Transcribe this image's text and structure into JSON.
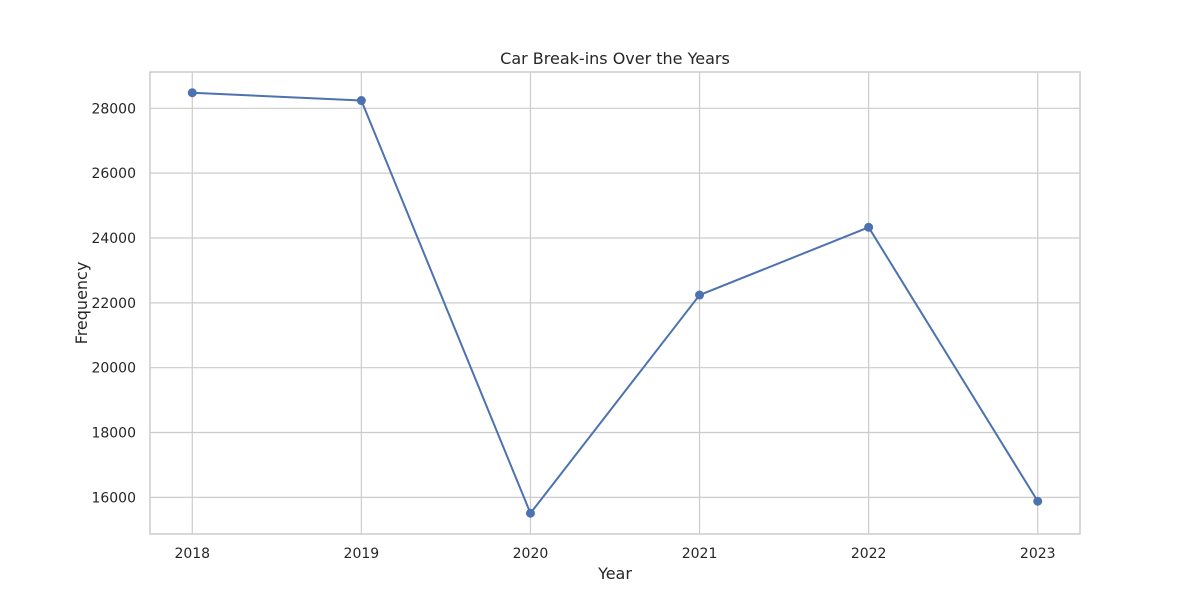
{
  "chart_data": {
    "type": "line",
    "title": "Car Break-ins Over the Years",
    "xlabel": "Year",
    "ylabel": "Frequency",
    "x": [
      2018,
      2019,
      2020,
      2021,
      2022,
      2023
    ],
    "x_tick_labels": [
      "2018",
      "2019",
      "2020",
      "2021",
      "2022",
      "2023"
    ],
    "series": [
      {
        "values": [
          28480,
          28240,
          15510,
          22240,
          24330,
          15880
        ]
      }
    ],
    "xlim": [
      2017.75,
      2023.25
    ],
    "ylim": [
      14870,
      29120
    ],
    "y_ticks": [
      16000,
      18000,
      20000,
      22000,
      24000,
      26000,
      28000
    ],
    "y_tick_labels": [
      "16000",
      "18000",
      "20000",
      "22000",
      "24000",
      "26000",
      "28000"
    ],
    "grid": true,
    "line_color": "#4c72b0"
  }
}
